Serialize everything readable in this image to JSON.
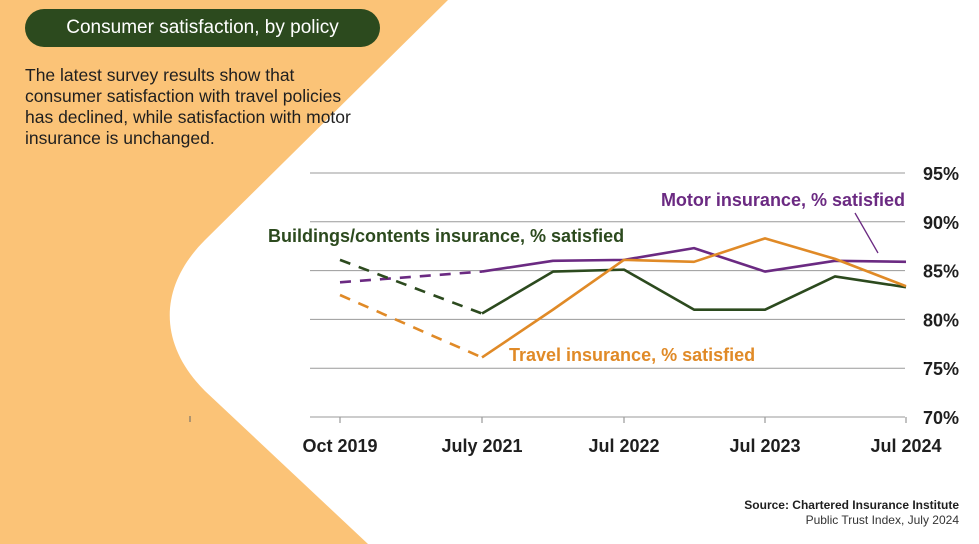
{
  "header": {
    "title": "Consumer satisfaction, by policy",
    "intro": "The latest survey results show that consumer satisfaction with travel policies has declined, while satisfaction with motor insurance is unchanged."
  },
  "source": {
    "line1": "Source: Chartered Insurance Institute",
    "line2": "Public Trust Index, July 2024"
  },
  "colors": {
    "background_accent": "#fbc377",
    "pill": "#2c4a1e",
    "motor": "#6b2a82",
    "buildings": "#2c4a1e",
    "travel": "#e08a27",
    "grid": "#9a9a9a"
  },
  "chart_data": {
    "type": "line",
    "title": "",
    "xlabel": "",
    "ylabel": "",
    "x_ticks": [
      "Oct 2019",
      "July 2021",
      "Jul 2022",
      "Jul 2023",
      "Jul 2024"
    ],
    "y_ticks": [
      "95%",
      "90%",
      "85%",
      "80%",
      "75%",
      "70%"
    ],
    "ylim": [
      70,
      95
    ],
    "grid": true,
    "y_axis_side": "right",
    "dashed_segment": "Oct 2019 to July 2021",
    "series": [
      {
        "name": "Motor insurance, % satisfied",
        "color": "#6b2a82",
        "points": [
          {
            "x": "Oct 2019",
            "y": 83.8
          },
          {
            "x": "July 2021",
            "y": 84.9
          },
          {
            "x": "Jan 2022",
            "y": 86.0
          },
          {
            "x": "Jul 2022",
            "y": 86.1
          },
          {
            "x": "Jan 2023",
            "y": 87.3
          },
          {
            "x": "Jul 2023",
            "y": 84.9
          },
          {
            "x": "Jan 2024",
            "y": 86.0
          },
          {
            "x": "Jul 2024",
            "y": 85.9
          }
        ]
      },
      {
        "name": "Buildings/contents insurance, % satisfied",
        "color": "#2c4a1e",
        "points": [
          {
            "x": "Oct 2019",
            "y": 86.1
          },
          {
            "x": "July 2021",
            "y": 80.6
          },
          {
            "x": "Jan 2022",
            "y": 84.9
          },
          {
            "x": "Jul 2022",
            "y": 85.1
          },
          {
            "x": "Jan 2023",
            "y": 81.0
          },
          {
            "x": "Jul 2023",
            "y": 81.0
          },
          {
            "x": "Jan 2024",
            "y": 84.4
          },
          {
            "x": "Jul 2024",
            "y": 83.3
          }
        ]
      },
      {
        "name": "Travel insurance, % satisfied",
        "color": "#e08a27",
        "points": [
          {
            "x": "Oct 2019",
            "y": 82.5
          },
          {
            "x": "July 2021",
            "y": 76.1
          },
          {
            "x": "Jan 2022",
            "y": 81.0
          },
          {
            "x": "Jul 2022",
            "y": 86.1
          },
          {
            "x": "Jan 2023",
            "y": 85.9
          },
          {
            "x": "Jul 2023",
            "y": 88.3
          },
          {
            "x": "Jan 2024",
            "y": 86.2
          },
          {
            "x": "Jul 2024",
            "y": 83.4
          }
        ]
      }
    ]
  }
}
